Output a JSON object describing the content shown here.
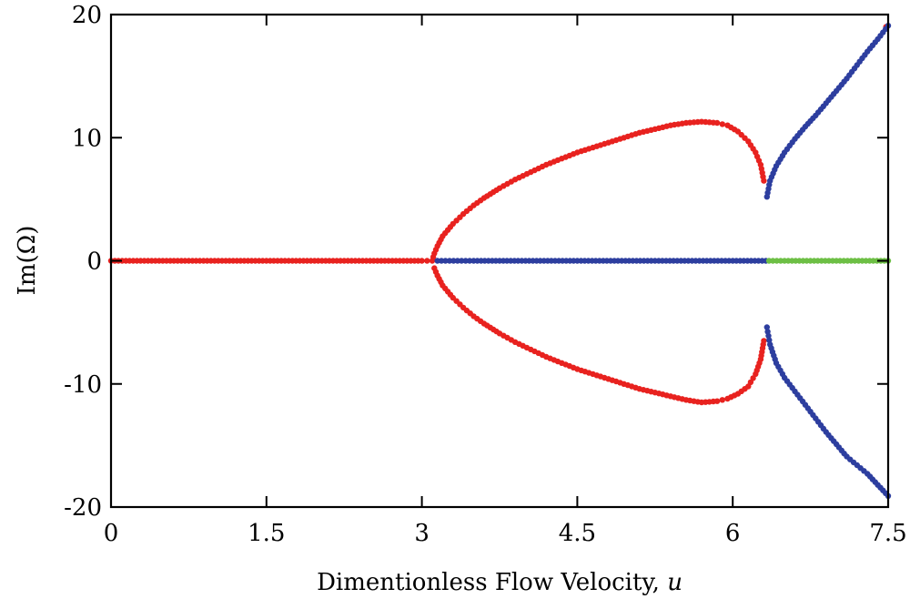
{
  "chart_data": {
    "type": "scatter",
    "title": "",
    "xlabel_text": "Dimentionless Flow Velocity, ",
    "xlabel_var": "u",
    "ylabel": "Im(Ω)",
    "xlim": [
      0,
      7.5
    ],
    "ylim": [
      -20,
      20
    ],
    "xticks": [
      0,
      1.5,
      3,
      4.5,
      6,
      7.5
    ],
    "xtick_labels": [
      "0",
      "1.5",
      "3",
      "4.5",
      "6",
      "7.5"
    ],
    "yticks": [
      -20,
      -10,
      0,
      10,
      20
    ],
    "ytick_labels": [
      "-20",
      "-10",
      "0",
      "10",
      "20"
    ],
    "grid": false,
    "legend": "none",
    "series": [
      {
        "color": "#e8221f",
        "points": [
          [
            0,
            0
          ],
          [
            0.25,
            0
          ],
          [
            0.5,
            0
          ],
          [
            0.75,
            0
          ],
          [
            1.0,
            0
          ],
          [
            1.25,
            0
          ],
          [
            1.5,
            0
          ],
          [
            1.75,
            0
          ],
          [
            2.0,
            0
          ],
          [
            2.25,
            0
          ],
          [
            2.5,
            0
          ],
          [
            2.75,
            0
          ],
          [
            3.0,
            0
          ],
          [
            3.1,
            0
          ],
          [
            3.12,
            0.6
          ],
          [
            3.15,
            1.2
          ],
          [
            3.2,
            2.0
          ],
          [
            3.3,
            3.0
          ],
          [
            3.4,
            3.8
          ],
          [
            3.5,
            4.5
          ],
          [
            3.6,
            5.1
          ],
          [
            3.75,
            5.9
          ],
          [
            3.9,
            6.6
          ],
          [
            4.05,
            7.2
          ],
          [
            4.2,
            7.8
          ],
          [
            4.35,
            8.3
          ],
          [
            4.5,
            8.8
          ],
          [
            4.65,
            9.2
          ],
          [
            4.8,
            9.6
          ],
          [
            4.95,
            10.0
          ],
          [
            5.1,
            10.4
          ],
          [
            5.25,
            10.7
          ],
          [
            5.4,
            11.0
          ],
          [
            5.55,
            11.2
          ],
          [
            5.7,
            11.3
          ],
          [
            5.85,
            11.2
          ],
          [
            5.95,
            11.0
          ],
          [
            6.05,
            10.5
          ],
          [
            6.15,
            9.7
          ],
          [
            6.22,
            8.8
          ],
          [
            6.27,
            7.8
          ],
          [
            6.3,
            6.5
          ],
          [
            3.12,
            -0.6
          ],
          [
            3.15,
            -1.2
          ],
          [
            3.2,
            -2.0
          ],
          [
            3.3,
            -3.0
          ],
          [
            3.4,
            -3.8
          ],
          [
            3.5,
            -4.5
          ],
          [
            3.6,
            -5.1
          ],
          [
            3.75,
            -5.9
          ],
          [
            3.9,
            -6.6
          ],
          [
            4.05,
            -7.2
          ],
          [
            4.2,
            -7.8
          ],
          [
            4.35,
            -8.3
          ],
          [
            4.5,
            -8.8
          ],
          [
            4.65,
            -9.2
          ],
          [
            4.8,
            -9.6
          ],
          [
            4.95,
            -10.0
          ],
          [
            5.1,
            -10.4
          ],
          [
            5.25,
            -10.7
          ],
          [
            5.4,
            -11.0
          ],
          [
            5.55,
            -11.3
          ],
          [
            5.7,
            -11.5
          ],
          [
            5.85,
            -11.4
          ],
          [
            5.95,
            -11.2
          ],
          [
            6.05,
            -10.8
          ],
          [
            6.15,
            -10.2
          ],
          [
            6.22,
            -9.2
          ],
          [
            6.27,
            -8.0
          ],
          [
            6.3,
            -6.5
          ],
          [
            7.48,
            19.0
          ]
        ]
      },
      {
        "color": "#2d3e9f",
        "points": [
          [
            3.15,
            0
          ],
          [
            3.5,
            0
          ],
          [
            4.0,
            0
          ],
          [
            4.5,
            0
          ],
          [
            5.0,
            0
          ],
          [
            5.5,
            0
          ],
          [
            6.0,
            0
          ],
          [
            6.32,
            0
          ],
          [
            6.33,
            5.2
          ],
          [
            6.36,
            6.5
          ],
          [
            6.42,
            7.7
          ],
          [
            6.5,
            8.8
          ],
          [
            6.6,
            9.9
          ],
          [
            6.7,
            10.9
          ],
          [
            6.8,
            11.8
          ],
          [
            6.9,
            12.8
          ],
          [
            7.0,
            13.8
          ],
          [
            7.1,
            14.8
          ],
          [
            7.2,
            15.9
          ],
          [
            7.3,
            17.0
          ],
          [
            7.4,
            18.0
          ],
          [
            7.5,
            19.1
          ],
          [
            6.33,
            -5.4
          ],
          [
            6.36,
            -6.8
          ],
          [
            6.42,
            -8.3
          ],
          [
            6.5,
            -9.5
          ],
          [
            6.6,
            -10.6
          ],
          [
            6.7,
            -11.7
          ],
          [
            6.8,
            -12.8
          ],
          [
            6.9,
            -13.9
          ],
          [
            7.0,
            -14.9
          ],
          [
            7.1,
            -15.9
          ],
          [
            7.2,
            -16.6
          ],
          [
            7.3,
            -17.3
          ],
          [
            7.4,
            -18.2
          ],
          [
            7.5,
            -19.1
          ]
        ]
      },
      {
        "color": "#6dbf45",
        "points": [
          [
            6.35,
            0
          ],
          [
            6.5,
            0
          ],
          [
            6.75,
            0
          ],
          [
            7.0,
            0
          ],
          [
            7.25,
            0
          ],
          [
            7.5,
            0
          ]
        ]
      }
    ]
  }
}
